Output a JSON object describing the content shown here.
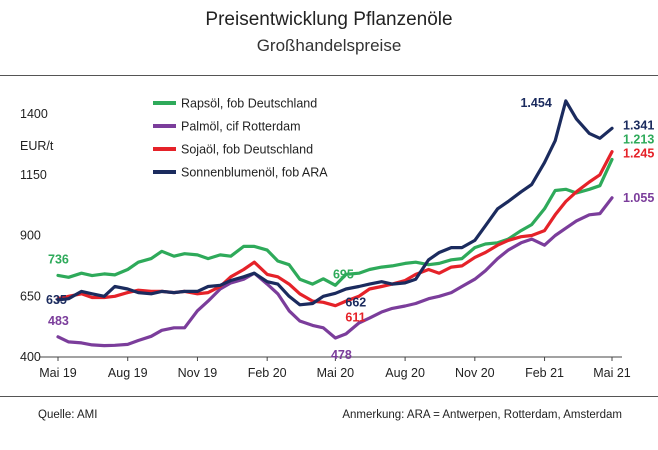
{
  "header": {
    "title": "Preisentwicklung Pflanzenöle",
    "subtitle": "Großhandelspreise"
  },
  "footer": {
    "source": "Quelle: AMI",
    "note": "Anmerkung: ARA = Antwerpen, Rotterdam, Amsterdam"
  },
  "chart_data": {
    "type": "line",
    "title": "Preisentwicklung Pflanzenöle",
    "subtitle": "Großhandelspreise",
    "ylabel": "EUR/t",
    "ylim": [
      400,
      1460
    ],
    "yticks": [
      400,
      650,
      900,
      1150,
      1400
    ],
    "xlim": [
      "2019-05-01",
      "2021-05-15"
    ],
    "xticks": [
      {
        "date": "2019-05-01",
        "label": "Mai 19"
      },
      {
        "date": "2019-08-01",
        "label": "Aug 19"
      },
      {
        "date": "2019-11-01",
        "label": "Nov 19"
      },
      {
        "date": "2020-02-01",
        "label": "Feb 20"
      },
      {
        "date": "2020-05-01",
        "label": "Mai 20"
      },
      {
        "date": "2020-08-01",
        "label": "Aug 20"
      },
      {
        "date": "2020-11-01",
        "label": "Nov 20"
      },
      {
        "date": "2021-02-01",
        "label": "Feb 21"
      },
      {
        "date": "2021-05-01",
        "label": "Mai 21"
      }
    ],
    "grid": false,
    "legend_position": "top-left",
    "series": [
      {
        "name": "Rapsöl, fob Deutschland",
        "color": "#2eaa5a",
        "points": [
          [
            "2019-05-01",
            736
          ],
          [
            "2019-05-15",
            728
          ],
          [
            "2019-06-01",
            745
          ],
          [
            "2019-06-15",
            735
          ],
          [
            "2019-07-01",
            742
          ],
          [
            "2019-07-15",
            738
          ],
          [
            "2019-08-01",
            760
          ],
          [
            "2019-08-15",
            790
          ],
          [
            "2019-09-01",
            805
          ],
          [
            "2019-09-15",
            835
          ],
          [
            "2019-10-01",
            815
          ],
          [
            "2019-10-15",
            825
          ],
          [
            "2019-11-01",
            820
          ],
          [
            "2019-11-15",
            805
          ],
          [
            "2019-12-01",
            820
          ],
          [
            "2019-12-15",
            815
          ],
          [
            "2020-01-01",
            855
          ],
          [
            "2020-01-15",
            855
          ],
          [
            "2020-02-01",
            840
          ],
          [
            "2020-02-15",
            795
          ],
          [
            "2020-03-01",
            780
          ],
          [
            "2020-03-15",
            720
          ],
          [
            "2020-04-01",
            700
          ],
          [
            "2020-04-15",
            722
          ],
          [
            "2020-05-01",
            695
          ],
          [
            "2020-05-15",
            740
          ],
          [
            "2020-06-01",
            745
          ],
          [
            "2020-06-15",
            760
          ],
          [
            "2020-07-01",
            770
          ],
          [
            "2020-07-15",
            775
          ],
          [
            "2020-08-01",
            785
          ],
          [
            "2020-08-15",
            790
          ],
          [
            "2020-09-01",
            780
          ],
          [
            "2020-09-15",
            785
          ],
          [
            "2020-10-01",
            800
          ],
          [
            "2020-10-15",
            805
          ],
          [
            "2020-11-01",
            850
          ],
          [
            "2020-11-15",
            865
          ],
          [
            "2020-12-01",
            870
          ],
          [
            "2020-12-15",
            885
          ],
          [
            "2021-01-01",
            920
          ],
          [
            "2021-01-15",
            945
          ],
          [
            "2021-02-01",
            1010
          ],
          [
            "2021-02-15",
            1085
          ],
          [
            "2021-03-01",
            1090
          ],
          [
            "2021-03-15",
            1075
          ],
          [
            "2021-04-01",
            1090
          ],
          [
            "2021-04-15",
            1105
          ],
          [
            "2021-05-01",
            1213
          ]
        ]
      },
      {
        "name": "Palmöl, cif Rotterdam",
        "color": "#7b3d9b",
        "points": [
          [
            "2019-05-01",
            483
          ],
          [
            "2019-05-15",
            462
          ],
          [
            "2019-06-01",
            458
          ],
          [
            "2019-06-15",
            450
          ],
          [
            "2019-07-01",
            447
          ],
          [
            "2019-07-15",
            448
          ],
          [
            "2019-08-01",
            452
          ],
          [
            "2019-08-15",
            468
          ],
          [
            "2019-09-01",
            485
          ],
          [
            "2019-09-15",
            510
          ],
          [
            "2019-10-01",
            520
          ],
          [
            "2019-10-15",
            520
          ],
          [
            "2019-11-01",
            590
          ],
          [
            "2019-11-15",
            630
          ],
          [
            "2019-12-01",
            680
          ],
          [
            "2019-12-15",
            705
          ],
          [
            "2020-01-01",
            720
          ],
          [
            "2020-01-15",
            745
          ],
          [
            "2020-02-01",
            700
          ],
          [
            "2020-02-15",
            660
          ],
          [
            "2020-03-01",
            590
          ],
          [
            "2020-03-15",
            548
          ],
          [
            "2020-04-01",
            530
          ],
          [
            "2020-04-15",
            520
          ],
          [
            "2020-05-01",
            478
          ],
          [
            "2020-05-15",
            495
          ],
          [
            "2020-06-01",
            540
          ],
          [
            "2020-06-15",
            560
          ],
          [
            "2020-07-01",
            585
          ],
          [
            "2020-07-15",
            600
          ],
          [
            "2020-08-01",
            610
          ],
          [
            "2020-08-15",
            620
          ],
          [
            "2020-09-01",
            640
          ],
          [
            "2020-09-15",
            650
          ],
          [
            "2020-10-01",
            665
          ],
          [
            "2020-10-15",
            690
          ],
          [
            "2020-11-01",
            720
          ],
          [
            "2020-11-15",
            755
          ],
          [
            "2020-12-01",
            805
          ],
          [
            "2020-12-15",
            840
          ],
          [
            "2021-01-01",
            870
          ],
          [
            "2021-01-15",
            885
          ],
          [
            "2021-02-01",
            860
          ],
          [
            "2021-02-15",
            900
          ],
          [
            "2021-03-01",
            930
          ],
          [
            "2021-03-15",
            960
          ],
          [
            "2021-04-01",
            985
          ],
          [
            "2021-04-15",
            990
          ],
          [
            "2021-05-01",
            1055
          ]
        ]
      },
      {
        "name": "Sojaöl, fob Deutschland",
        "color": "#e52229",
        "points": [
          [
            "2019-05-01",
            640
          ],
          [
            "2019-05-15",
            650
          ],
          [
            "2019-06-01",
            660
          ],
          [
            "2019-06-15",
            645
          ],
          [
            "2019-07-01",
            645
          ],
          [
            "2019-07-15",
            650
          ],
          [
            "2019-08-01",
            665
          ],
          [
            "2019-08-15",
            675
          ],
          [
            "2019-09-01",
            670
          ],
          [
            "2019-09-15",
            670
          ],
          [
            "2019-10-01",
            665
          ],
          [
            "2019-10-15",
            670
          ],
          [
            "2019-11-01",
            660
          ],
          [
            "2019-11-15",
            665
          ],
          [
            "2019-12-01",
            690
          ],
          [
            "2019-12-15",
            730
          ],
          [
            "2020-01-01",
            760
          ],
          [
            "2020-01-15",
            790
          ],
          [
            "2020-02-01",
            740
          ],
          [
            "2020-02-15",
            730
          ],
          [
            "2020-03-01",
            700
          ],
          [
            "2020-03-15",
            660
          ],
          [
            "2020-04-01",
            630
          ],
          [
            "2020-04-15",
            625
          ],
          [
            "2020-05-01",
            611
          ],
          [
            "2020-05-15",
            630
          ],
          [
            "2020-06-01",
            650
          ],
          [
            "2020-06-15",
            680
          ],
          [
            "2020-07-01",
            690
          ],
          [
            "2020-07-15",
            700
          ],
          [
            "2020-08-01",
            715
          ],
          [
            "2020-08-15",
            740
          ],
          [
            "2020-09-01",
            760
          ],
          [
            "2020-09-15",
            745
          ],
          [
            "2020-10-01",
            770
          ],
          [
            "2020-10-15",
            775
          ],
          [
            "2020-11-01",
            810
          ],
          [
            "2020-11-15",
            830
          ],
          [
            "2020-12-01",
            860
          ],
          [
            "2020-12-15",
            880
          ],
          [
            "2021-01-01",
            895
          ],
          [
            "2021-01-15",
            900
          ],
          [
            "2021-02-01",
            920
          ],
          [
            "2021-02-15",
            985
          ],
          [
            "2021-03-01",
            1040
          ],
          [
            "2021-03-15",
            1080
          ],
          [
            "2021-04-01",
            1120
          ],
          [
            "2021-04-15",
            1150
          ],
          [
            "2021-05-01",
            1245
          ]
        ]
      },
      {
        "name": "Sonnenblumenöl, fob ARA",
        "color": "#1b2b5e",
        "points": [
          [
            "2019-05-01",
            635
          ],
          [
            "2019-05-15",
            640
          ],
          [
            "2019-06-01",
            670
          ],
          [
            "2019-06-15",
            660
          ],
          [
            "2019-07-01",
            650
          ],
          [
            "2019-07-15",
            690
          ],
          [
            "2019-08-01",
            680
          ],
          [
            "2019-08-15",
            665
          ],
          [
            "2019-09-01",
            660
          ],
          [
            "2019-09-15",
            670
          ],
          [
            "2019-10-01",
            665
          ],
          [
            "2019-10-15",
            670
          ],
          [
            "2019-11-01",
            670
          ],
          [
            "2019-11-15",
            690
          ],
          [
            "2019-12-01",
            695
          ],
          [
            "2019-12-15",
            715
          ],
          [
            "2020-01-01",
            730
          ],
          [
            "2020-01-15",
            745
          ],
          [
            "2020-02-01",
            710
          ],
          [
            "2020-02-15",
            700
          ],
          [
            "2020-03-01",
            650
          ],
          [
            "2020-03-15",
            615
          ],
          [
            "2020-04-01",
            620
          ],
          [
            "2020-04-15",
            650
          ],
          [
            "2020-05-01",
            662
          ],
          [
            "2020-05-15",
            680
          ],
          [
            "2020-06-01",
            690
          ],
          [
            "2020-06-15",
            700
          ],
          [
            "2020-07-01",
            710
          ],
          [
            "2020-07-15",
            700
          ],
          [
            "2020-08-01",
            705
          ],
          [
            "2020-08-15",
            720
          ],
          [
            "2020-09-01",
            800
          ],
          [
            "2020-09-15",
            830
          ],
          [
            "2020-10-01",
            850
          ],
          [
            "2020-10-15",
            850
          ],
          [
            "2020-11-01",
            880
          ],
          [
            "2020-11-15",
            940
          ],
          [
            "2020-12-01",
            1010
          ],
          [
            "2020-12-15",
            1040
          ],
          [
            "2021-01-01",
            1080
          ],
          [
            "2021-01-15",
            1110
          ],
          [
            "2021-02-01",
            1200
          ],
          [
            "2021-02-15",
            1290
          ],
          [
            "2021-03-01",
            1454
          ],
          [
            "2021-03-15",
            1380
          ],
          [
            "2021-04-01",
            1320
          ],
          [
            "2021-04-15",
            1300
          ],
          [
            "2021-05-01",
            1341
          ]
        ]
      }
    ],
    "annotations": [
      {
        "series": 0,
        "date": "2019-05-01",
        "text": "736",
        "pos": "above-left"
      },
      {
        "series": 1,
        "date": "2019-05-01",
        "text": "483",
        "pos": "above-left"
      },
      {
        "series": 3,
        "date": "2019-05-01",
        "text": "635",
        "pos": "left"
      },
      {
        "series": 0,
        "date": "2020-05-01",
        "text": "695",
        "pos": "above"
      },
      {
        "series": 3,
        "date": "2020-05-01",
        "text": "662",
        "pos": "right"
      },
      {
        "series": 2,
        "date": "2020-05-01",
        "text": "611",
        "pos": "below-right"
      },
      {
        "series": 1,
        "date": "2020-05-01",
        "text": "478",
        "pos": "below"
      },
      {
        "series": 3,
        "date": "2021-03-01",
        "text": "1.454",
        "pos": "left"
      },
      {
        "series": 3,
        "date": "2021-05-01",
        "text": "1.341",
        "pos": "end"
      },
      {
        "series": 2,
        "date": "2021-05-01",
        "text": "1.245",
        "pos": "end-above"
      },
      {
        "series": 0,
        "date": "2021-05-01",
        "text": "1.213",
        "pos": "end-below"
      },
      {
        "series": 1,
        "date": "2021-05-01",
        "text": "1.055",
        "pos": "end"
      }
    ]
  }
}
